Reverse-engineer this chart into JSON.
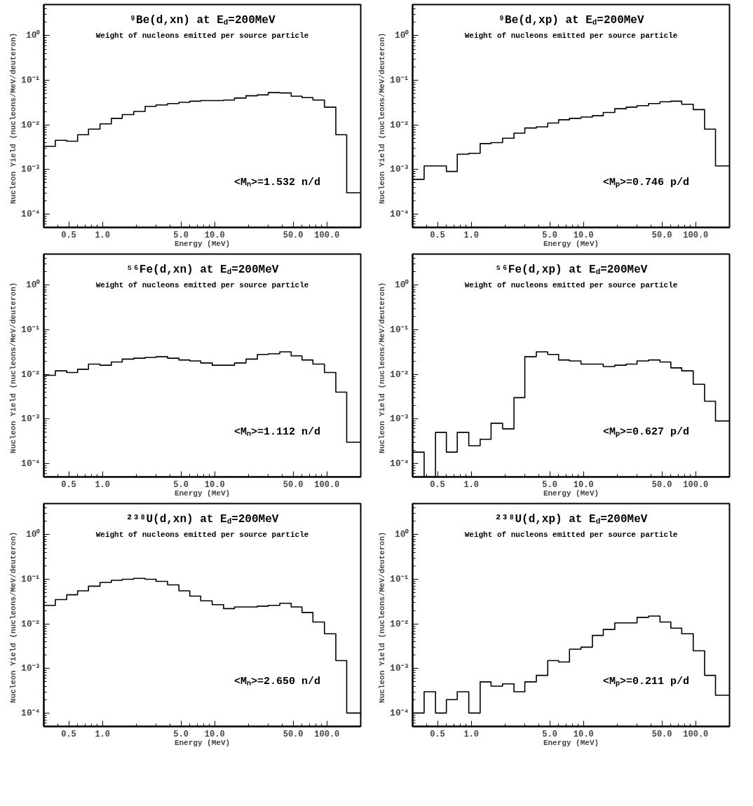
{
  "chart_data": [
    {
      "type": "histogram",
      "title": "⁹Be(d,xn) at E$_{d}$=200MeV",
      "subtitle": "Weight of nucleons emitted per source particle",
      "xlabel": "Energy (MeV)",
      "ylabel": "Nucleon Yield  (nucleons/MeV/deuteron)",
      "annotations": [
        "<Mₙ>=1.532 n/d"
      ],
      "log": "xy",
      "color": "#000000",
      "xlim": [
        0.3,
        200
      ],
      "ylim": [
        5e-05,
        5
      ],
      "xticks": [
        {
          "value": 0.5,
          "label": "0.5"
        },
        {
          "value": 1,
          "label": "1.0"
        },
        {
          "value": 5,
          "label": "5.0"
        },
        {
          "value": 10,
          "label": "10.0"
        },
        {
          "value": 50,
          "label": "50.0"
        },
        {
          "value": 100,
          "label": "100.0"
        }
      ],
      "yticks": [
        {
          "value": 1,
          "label": "10⁰"
        },
        {
          "value": 0.1,
          "label": "10⁻¹"
        },
        {
          "value": 0.01,
          "label": "10⁻²"
        },
        {
          "value": 0.001,
          "label": "10⁻³"
        },
        {
          "value": 0.0001,
          "label": "10⁻⁴"
        }
      ],
      "bins": [
        0.3,
        0.38,
        0.48,
        0.6,
        0.75,
        0.95,
        1.2,
        1.5,
        1.9,
        2.4,
        3,
        3.8,
        4.8,
        6,
        7.5,
        9.5,
        12,
        15,
        19,
        24,
        30,
        38,
        48,
        60,
        75,
        95,
        120,
        150,
        200
      ],
      "values": [
        0.0033,
        0.0045,
        0.0043,
        0.006,
        0.008,
        0.0105,
        0.014,
        0.017,
        0.02,
        0.026,
        0.028,
        0.03,
        0.032,
        0.034,
        0.035,
        0.035,
        0.036,
        0.04,
        0.045,
        0.047,
        0.053,
        0.052,
        0.044,
        0.041,
        0.036,
        0.025,
        0.006,
        0.0003
      ]
    },
    {
      "type": "histogram",
      "title": "⁹Be(d,xp) at E$_{d}$=200MeV",
      "subtitle": "Weight of nucleons emitted per source particle",
      "xlabel": "Energy (MeV)",
      "ylabel": "Nucleon Yield  (nucleons/MeV/deuteron)",
      "annotations": [
        "<Mₚ>=0.746 p/d"
      ],
      "log": "xy",
      "color": "#000000",
      "xlim": [
        0.3,
        200
      ],
      "ylim": [
        5e-05,
        5
      ],
      "xticks": [
        {
          "value": 0.5,
          "label": "0.5"
        },
        {
          "value": 1,
          "label": "1.0"
        },
        {
          "value": 5,
          "label": "5.0"
        },
        {
          "value": 10,
          "label": "10.0"
        },
        {
          "value": 50,
          "label": "50.0"
        },
        {
          "value": 100,
          "label": "100.0"
        }
      ],
      "yticks": [
        {
          "value": 1,
          "label": "10⁰"
        },
        {
          "value": 0.1,
          "label": "10⁻¹"
        },
        {
          "value": 0.01,
          "label": "10⁻²"
        },
        {
          "value": 0.001,
          "label": "10⁻³"
        },
        {
          "value": 0.0001,
          "label": "10⁻⁴"
        }
      ],
      "bins": [
        0.3,
        0.38,
        0.48,
        0.6,
        0.75,
        0.95,
        1.2,
        1.5,
        1.9,
        2.4,
        3,
        3.8,
        4.8,
        6,
        7.5,
        9.5,
        12,
        15,
        19,
        24,
        30,
        38,
        48,
        60,
        75,
        95,
        120,
        150,
        200
      ],
      "values": [
        0.0006,
        0.0012,
        0.0012,
        0.0009,
        0.0022,
        0.0023,
        0.0038,
        0.004,
        0.005,
        0.0065,
        0.0085,
        0.009,
        0.011,
        0.013,
        0.014,
        0.015,
        0.016,
        0.019,
        0.023,
        0.025,
        0.027,
        0.03,
        0.033,
        0.034,
        0.029,
        0.022,
        0.008,
        0.0012
      ]
    },
    {
      "type": "histogram",
      "title": "⁵⁶Fe(d,xn) at E$_{d}$=200MeV",
      "subtitle": "Weight of nucleons emitted per source particle",
      "xlabel": "Energy (MeV)",
      "ylabel": "Nucleon Yield  (nucleons/MeV/deuteron)",
      "annotations": [
        "<Mₙ>=1.112 n/d"
      ],
      "log": "xy",
      "color": "#000000",
      "xlim": [
        0.3,
        200
      ],
      "ylim": [
        5e-05,
        5
      ],
      "xticks": [
        {
          "value": 0.5,
          "label": "0.5"
        },
        {
          "value": 1,
          "label": "1.0"
        },
        {
          "value": 5,
          "label": "5.0"
        },
        {
          "value": 10,
          "label": "10.0"
        },
        {
          "value": 50,
          "label": "50.0"
        },
        {
          "value": 100,
          "label": "100.0"
        }
      ],
      "yticks": [
        {
          "value": 1,
          "label": "10⁰"
        },
        {
          "value": 0.1,
          "label": "10⁻¹"
        },
        {
          "value": 0.01,
          "label": "10⁻²"
        },
        {
          "value": 0.001,
          "label": "10⁻³"
        },
        {
          "value": 0.0001,
          "label": "10⁻⁴"
        }
      ],
      "bins": [
        0.3,
        0.38,
        0.48,
        0.6,
        0.75,
        0.95,
        1.2,
        1.5,
        1.9,
        2.4,
        3,
        3.8,
        4.8,
        6,
        7.5,
        9.5,
        12,
        15,
        19,
        24,
        30,
        38,
        48,
        60,
        75,
        95,
        120,
        150,
        200
      ],
      "values": [
        0.0095,
        0.012,
        0.011,
        0.013,
        0.017,
        0.016,
        0.019,
        0.022,
        0.023,
        0.024,
        0.025,
        0.023,
        0.021,
        0.02,
        0.018,
        0.016,
        0.016,
        0.018,
        0.022,
        0.028,
        0.029,
        0.032,
        0.026,
        0.021,
        0.017,
        0.011,
        0.004,
        0.0003
      ]
    },
    {
      "type": "histogram",
      "title": "⁵⁶Fe(d,xp) at E$_{d}$=200MeV",
      "subtitle": "Weight of nucleons emitted per source particle",
      "xlabel": "Energy (MeV)",
      "ylabel": "Nucleon Yield  (nucleons/MeV/deuteron)",
      "annotations": [
        "<Mₚ>=0.627 p/d"
      ],
      "log": "xy",
      "color": "#000000",
      "xlim": [
        0.3,
        200
      ],
      "ylim": [
        5e-05,
        5
      ],
      "xticks": [
        {
          "value": 0.5,
          "label": "0.5"
        },
        {
          "value": 1,
          "label": "1.0"
        },
        {
          "value": 5,
          "label": "5.0"
        },
        {
          "value": 10,
          "label": "10.0"
        },
        {
          "value": 50,
          "label": "50.0"
        },
        {
          "value": 100,
          "label": "100.0"
        }
      ],
      "yticks": [
        {
          "value": 1,
          "label": "10⁰"
        },
        {
          "value": 0.1,
          "label": "10⁻¹"
        },
        {
          "value": 0.01,
          "label": "10⁻²"
        },
        {
          "value": 0.001,
          "label": "10⁻³"
        },
        {
          "value": 0.0001,
          "label": "10⁻⁴"
        }
      ],
      "bins": [
        0.3,
        0.38,
        0.48,
        0.6,
        0.75,
        0.95,
        1.2,
        1.5,
        1.9,
        2.4,
        3,
        3.8,
        4.8,
        6,
        7.5,
        9.5,
        12,
        15,
        19,
        24,
        30,
        38,
        48,
        60,
        75,
        95,
        120,
        150,
        200
      ],
      "values": [
        0.00018,
        null,
        0.0005,
        0.00018,
        0.0005,
        0.00025,
        0.00035,
        0.0008,
        0.0006,
        0.003,
        0.025,
        0.032,
        0.028,
        0.021,
        0.02,
        0.017,
        0.017,
        0.015,
        0.016,
        0.017,
        0.02,
        0.021,
        0.019,
        0.014,
        0.012,
        0.006,
        0.0025,
        0.0009
      ]
    },
    {
      "type": "histogram",
      "title": "²³⁸U(d,xn) at E$_{d}$=200MeV",
      "subtitle": "Weight of nucleons emitted per source particle",
      "xlabel": "Energy (MeV)",
      "ylabel": "Nucleon Yield  (nucleons/MeV/deuteron)",
      "annotations": [
        "<Mₙ>=2.650 n/d"
      ],
      "log": "xy",
      "color": "#000000",
      "xlim": [
        0.3,
        200
      ],
      "ylim": [
        5e-05,
        5
      ],
      "xticks": [
        {
          "value": 0.5,
          "label": "0.5"
        },
        {
          "value": 1,
          "label": "1.0"
        },
        {
          "value": 5,
          "label": "5.0"
        },
        {
          "value": 10,
          "label": "10.0"
        },
        {
          "value": 50,
          "label": "50.0"
        },
        {
          "value": 100,
          "label": "100.0"
        }
      ],
      "yticks": [
        {
          "value": 1,
          "label": "10⁰"
        },
        {
          "value": 0.1,
          "label": "10⁻¹"
        },
        {
          "value": 0.01,
          "label": "10⁻²"
        },
        {
          "value": 0.001,
          "label": "10⁻³"
        },
        {
          "value": 0.0001,
          "label": "10⁻⁴"
        }
      ],
      "bins": [
        0.3,
        0.38,
        0.48,
        0.6,
        0.75,
        0.95,
        1.2,
        1.5,
        1.9,
        2.4,
        3,
        3.8,
        4.8,
        6,
        7.5,
        9.5,
        12,
        15,
        19,
        24,
        30,
        38,
        48,
        60,
        75,
        95,
        120,
        150,
        200
      ],
      "values": [
        0.026,
        0.035,
        0.045,
        0.055,
        0.07,
        0.085,
        0.095,
        0.1,
        0.105,
        0.1,
        0.09,
        0.075,
        0.055,
        0.042,
        0.033,
        0.027,
        0.022,
        0.024,
        0.024,
        0.025,
        0.026,
        0.029,
        0.024,
        0.018,
        0.011,
        0.006,
        0.0015,
        0.0001
      ]
    },
    {
      "type": "histogram",
      "title": "²³⁸U(d,xp) at E$_{d}$=200MeV",
      "subtitle": "Weight of nucleons emitted per source particle",
      "xlabel": "Energy (MeV)",
      "ylabel": "Nucleon Yield  (nucleons/MeV/deuteron)",
      "annotations": [
        "<Mₚ>=0.211 p/d"
      ],
      "log": "xy",
      "color": "#000000",
      "xlim": [
        0.3,
        200
      ],
      "ylim": [
        5e-05,
        5
      ],
      "xticks": [
        {
          "value": 0.5,
          "label": "0.5"
        },
        {
          "value": 1,
          "label": "1.0"
        },
        {
          "value": 5,
          "label": "5.0"
        },
        {
          "value": 10,
          "label": "10.0"
        },
        {
          "value": 50,
          "label": "50.0"
        },
        {
          "value": 100,
          "label": "100.0"
        }
      ],
      "yticks": [
        {
          "value": 1,
          "label": "10⁰"
        },
        {
          "value": 0.1,
          "label": "10⁻¹"
        },
        {
          "value": 0.01,
          "label": "10⁻²"
        },
        {
          "value": 0.001,
          "label": "10⁻³"
        },
        {
          "value": 0.0001,
          "label": "10⁻⁴"
        }
      ],
      "bins": [
        0.3,
        0.38,
        0.48,
        0.6,
        0.75,
        0.95,
        1.2,
        1.5,
        1.9,
        2.4,
        3,
        3.8,
        4.8,
        6,
        7.5,
        9.5,
        12,
        15,
        19,
        24,
        30,
        38,
        48,
        60,
        75,
        95,
        120,
        150,
        200
      ],
      "values": [
        0.0001,
        0.0003,
        0.0001,
        0.0002,
        0.0003,
        0.0001,
        0.0005,
        0.0004,
        0.00045,
        0.0003,
        0.0005,
        0.0007,
        0.0015,
        0.0014,
        0.0027,
        0.003,
        0.0055,
        0.0075,
        0.0105,
        0.0105,
        0.014,
        0.015,
        0.011,
        0.008,
        0.006,
        0.0025,
        0.0007,
        0.00025
      ]
    }
  ]
}
